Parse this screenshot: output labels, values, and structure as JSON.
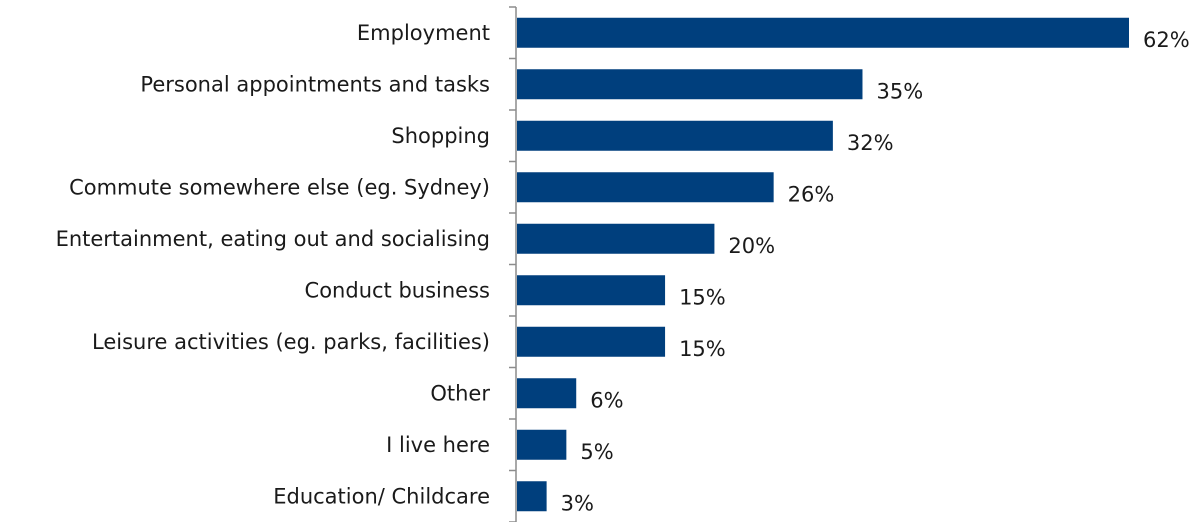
{
  "chart_data": {
    "type": "bar",
    "orientation": "horizontal",
    "title": "",
    "xlabel": "",
    "ylabel": "",
    "categories": [
      "Employment",
      "Personal appointments and tasks",
      "Shopping",
      "Commute somewhere else (eg. Sydney)",
      "Entertainment, eating out and socialising",
      "Conduct business",
      "Leisure activities (eg. parks, facilities)",
      "Other",
      "I live here",
      "Education/ Childcare"
    ],
    "values": [
      62,
      35,
      32,
      26,
      20,
      15,
      15,
      6,
      5,
      3
    ],
    "value_labels": [
      "62%",
      "35%",
      "32%",
      "26%",
      "20%",
      "15%",
      "15%",
      "6%",
      "5%",
      "3%"
    ],
    "xlim": [
      0,
      62
    ],
    "grid": false,
    "legend": "none",
    "bar_color": "#003f7d"
  }
}
